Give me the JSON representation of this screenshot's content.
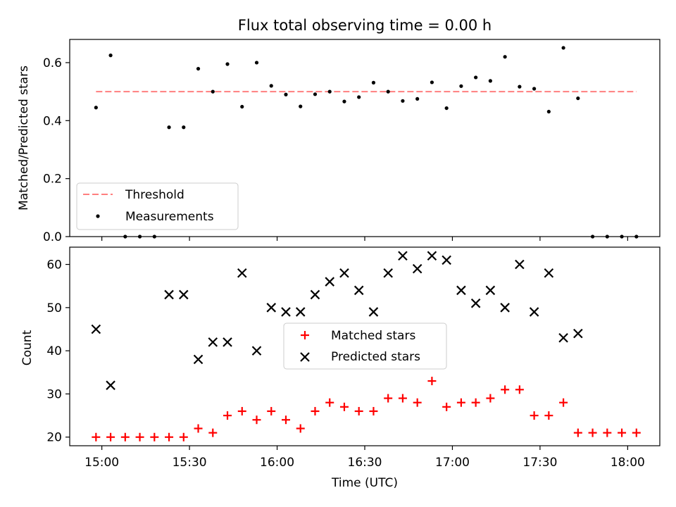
{
  "chart_data": [
    {
      "type": "scatter",
      "title": "Flux total observing time = 0.00 h",
      "ylabel": "Matched/Predicted stars",
      "ylim": [
        0,
        0.68
      ],
      "yticks": [
        "0.0",
        "0.2",
        "0.4",
        "0.6"
      ],
      "threshold": {
        "name": "Threshold",
        "value": 0.5,
        "color": "#ff7f7f"
      },
      "series": [
        {
          "name": "Measurements",
          "color": "#000000",
          "marker": "dot",
          "points": [
            [
              "14:58",
              0.445
            ],
            [
              "15:03",
              0.625
            ],
            [
              "15:08",
              0.0
            ],
            [
              "15:13",
              0.0
            ],
            [
              "15:18",
              0.0
            ],
            [
              "15:23",
              0.377
            ],
            [
              "15:28",
              0.377
            ],
            [
              "15:33",
              0.579
            ],
            [
              "15:38",
              0.5
            ],
            [
              "15:43",
              0.595
            ],
            [
              "15:48",
              0.448
            ],
            [
              "15:53",
              0.6
            ],
            [
              "15:58",
              0.52
            ],
            [
              "16:03",
              0.49
            ],
            [
              "16:08",
              0.449
            ],
            [
              "16:13",
              0.491
            ],
            [
              "16:18",
              0.5
            ],
            [
              "16:23",
              0.466
            ],
            [
              "16:28",
              0.481
            ],
            [
              "16:33",
              0.531
            ],
            [
              "16:38",
              0.5
            ],
            [
              "16:43",
              0.468
            ],
            [
              "16:48",
              0.475
            ],
            [
              "16:53",
              0.532
            ],
            [
              "16:58",
              0.443
            ],
            [
              "17:03",
              0.519
            ],
            [
              "17:08",
              0.549
            ],
            [
              "17:13",
              0.537
            ],
            [
              "17:18",
              0.62
            ],
            [
              "17:23",
              0.517
            ],
            [
              "17:28",
              0.51
            ],
            [
              "17:33",
              0.431
            ],
            [
              "17:38",
              0.651
            ],
            [
              "17:43",
              0.477
            ],
            [
              "17:48",
              0.0
            ],
            [
              "17:53",
              0.0
            ],
            [
              "17:58",
              0.0
            ],
            [
              "18:03",
              0.0
            ]
          ]
        }
      ],
      "legend": {
        "position": "lower-left",
        "entries": [
          "Threshold",
          "Measurements"
        ]
      }
    },
    {
      "type": "scatter",
      "xlabel": "Time (UTC)",
      "ylabel": "Count",
      "ylim": [
        18,
        64
      ],
      "yticks": [
        "20",
        "30",
        "40",
        "50",
        "60"
      ],
      "xticks": [
        "15:00",
        "15:30",
        "16:00",
        "16:30",
        "17:00",
        "17:30",
        "18:00"
      ],
      "xlim": [
        "14:49",
        "18:11"
      ],
      "x": [
        "14:58",
        "15:03",
        "15:08",
        "15:13",
        "15:18",
        "15:23",
        "15:28",
        "15:33",
        "15:38",
        "15:43",
        "15:48",
        "15:53",
        "15:58",
        "16:03",
        "16:08",
        "16:13",
        "16:18",
        "16:23",
        "16:28",
        "16:33",
        "16:38",
        "16:43",
        "16:48",
        "16:53",
        "16:58",
        "17:03",
        "17:08",
        "17:13",
        "17:18",
        "17:23",
        "17:28",
        "17:33",
        "17:38",
        "17:43",
        "17:48",
        "17:53",
        "17:58",
        "18:03"
      ],
      "series": [
        {
          "name": "Matched stars",
          "color": "#ff0000",
          "marker": "plus",
          "values": [
            20,
            20,
            20,
            20,
            20,
            20,
            20,
            22,
            21,
            25,
            26,
            24,
            26,
            24,
            22,
            26,
            28,
            27,
            26,
            26,
            29,
            29,
            28,
            33,
            27,
            28,
            28,
            29,
            31,
            31,
            25,
            25,
            28,
            21,
            21,
            21,
            21,
            21
          ]
        },
        {
          "name": "Predicted stars",
          "color": "#000000",
          "marker": "x",
          "values": [
            45,
            32,
            null,
            null,
            null,
            53,
            53,
            38,
            42,
            42,
            58,
            40,
            50,
            49,
            49,
            53,
            56,
            58,
            54,
            49,
            58,
            62,
            59,
            62,
            61,
            54,
            51,
            54,
            50,
            60,
            49,
            58,
            43,
            44,
            null,
            null,
            null,
            null
          ]
        }
      ],
      "legend": {
        "position": "center",
        "entries": [
          "Matched stars",
          "Predicted stars"
        ]
      }
    }
  ]
}
